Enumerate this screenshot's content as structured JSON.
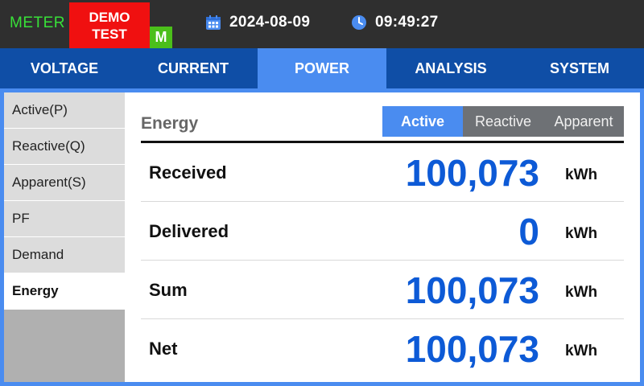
{
  "header": {
    "meter_label": "METER",
    "demo_line1": "DEMO",
    "demo_line2": "TEST",
    "mode_badge": "M",
    "date": "2024-08-09",
    "time": "09:49:27",
    "icons": {
      "date": "calendar-icon",
      "time": "clock-icon"
    },
    "colors": {
      "meter": "#38e038",
      "demo": "#f01010",
      "mode": "#4bbf1a"
    }
  },
  "tabs": [
    {
      "label": "VOLTAGE",
      "active": false
    },
    {
      "label": "CURRENT",
      "active": false
    },
    {
      "label": "POWER",
      "active": true
    },
    {
      "label": "ANALYSIS",
      "active": false
    },
    {
      "label": "SYSTEM",
      "active": false
    }
  ],
  "sidebar": {
    "items": [
      {
        "label": "Active(P)",
        "active": false
      },
      {
        "label": "Reactive(Q)",
        "active": false
      },
      {
        "label": "Apparent(S)",
        "active": false
      },
      {
        "label": "PF",
        "active": false
      },
      {
        "label": "Demand",
        "active": false
      },
      {
        "label": "Energy",
        "active": true
      }
    ]
  },
  "content": {
    "title": "Energy",
    "toggle": [
      {
        "label": "Active",
        "active": true
      },
      {
        "label": "Reactive",
        "active": false
      },
      {
        "label": "Apparent",
        "active": false
      }
    ],
    "rows": [
      {
        "label": "Received",
        "value": "100,073",
        "unit": "kWh"
      },
      {
        "label": "Delivered",
        "value": "0",
        "unit": "kWh"
      },
      {
        "label": "Sum",
        "value": "100,073",
        "unit": "kWh"
      },
      {
        "label": "Net",
        "value": "100,073",
        "unit": "kWh"
      }
    ]
  },
  "colors": {
    "tab_bar": "#0f4ea6",
    "accent": "#4a8cf0",
    "value": "#0d5ad6"
  }
}
